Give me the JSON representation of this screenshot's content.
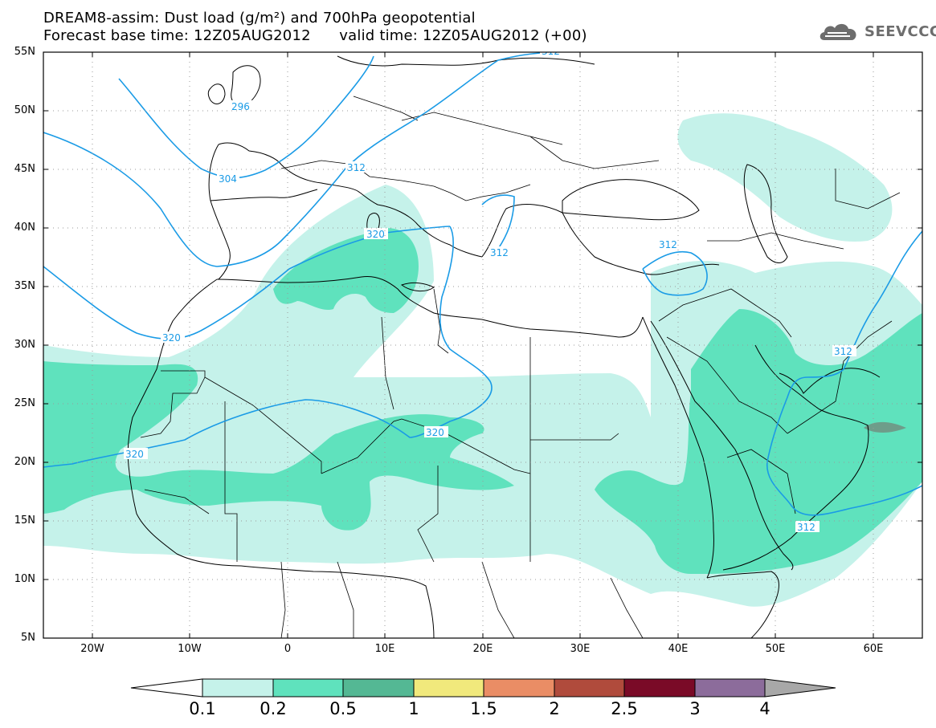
{
  "header": {
    "title_line1": "DREAM8-assim: Dust load (g/m²) and 700hPa geopotential",
    "title_line2": "Forecast base time: 12Z05AUG2012      valid time: 12Z05AUG2012 (+00)",
    "logo_text": "SEEVCCC",
    "logo_icon": "cloud-icon"
  },
  "axes": {
    "lat_labels": [
      "55N",
      "50N",
      "45N",
      "40N",
      "35N",
      "30N",
      "25N",
      "20N",
      "15N",
      "10N",
      "5N"
    ],
    "lon_labels": [
      "20W",
      "10W",
      "0",
      "10E",
      "20E",
      "30E",
      "40E",
      "50E",
      "60E"
    ],
    "lon_range": [
      -25,
      65
    ],
    "lat_range": [
      5,
      55
    ]
  },
  "contour_labels": [
    "304",
    "296",
    "312",
    "312",
    "320",
    "320",
    "320",
    "320",
    "312",
    "312",
    "312",
    "312"
  ],
  "colorbar": {
    "labels": [
      "0.1",
      "0.2",
      "0.5",
      "1",
      "1.5",
      "2",
      "2.5",
      "3",
      "4"
    ],
    "colors": [
      "#ffffff",
      "#c5f2ea",
      "#5fe2bd",
      "#54b894",
      "#f1e97c",
      "#ea8d65",
      "#b04b3c",
      "#7a0a27",
      "#8c6c9b",
      "#a8a8a8"
    ]
  },
  "colors": {
    "dust_light": "#c5f2ea",
    "dust_medium": "#5fe2bd",
    "dust_dark": "#54b894",
    "dust_max": "#6e9d8a",
    "geopotential": "#1a9be6",
    "grid": "#9a9a9a",
    "coast": "#000000"
  }
}
